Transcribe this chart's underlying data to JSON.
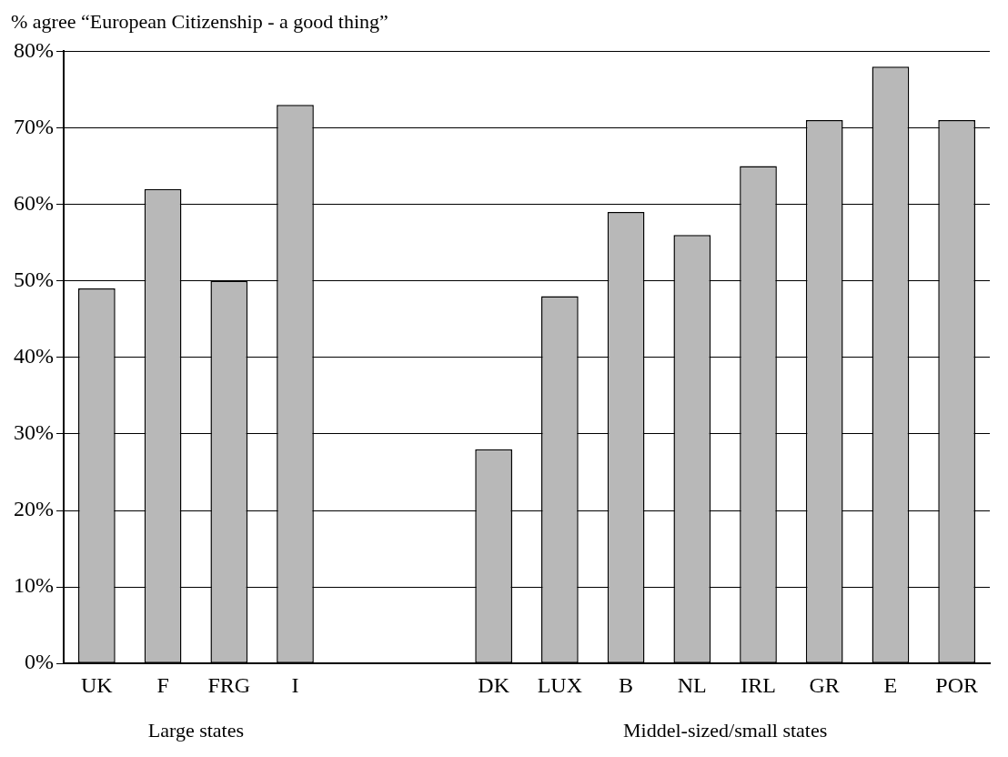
{
  "chart_data": {
    "type": "bar",
    "title": "% agree “European Citizenship - a good thing”",
    "categories": [
      "UK",
      "F",
      "FRG",
      "I",
      null,
      null,
      "DK",
      "LUX",
      "B",
      "NL",
      "IRL",
      "GR",
      "E",
      "POR"
    ],
    "values": [
      49,
      62,
      50,
      73,
      null,
      null,
      28,
      48,
      59,
      56,
      65,
      71,
      78,
      71
    ],
    "color": "#b8b8b8",
    "ylim": [
      0,
      80
    ],
    "yticks": [
      {
        "value": 0,
        "label": "0%"
      },
      {
        "value": 10,
        "label": "10%"
      },
      {
        "value": 20,
        "label": "20%"
      },
      {
        "value": 30,
        "label": "30%"
      },
      {
        "value": 40,
        "label": "40%"
      },
      {
        "value": 50,
        "label": "50%"
      },
      {
        "value": 60,
        "label": "60%"
      },
      {
        "value": 70,
        "label": "70%"
      },
      {
        "value": 80,
        "label": "80%"
      }
    ],
    "grid": "y",
    "annotations": [
      "Large states",
      "Middel-sized/small states"
    ]
  }
}
